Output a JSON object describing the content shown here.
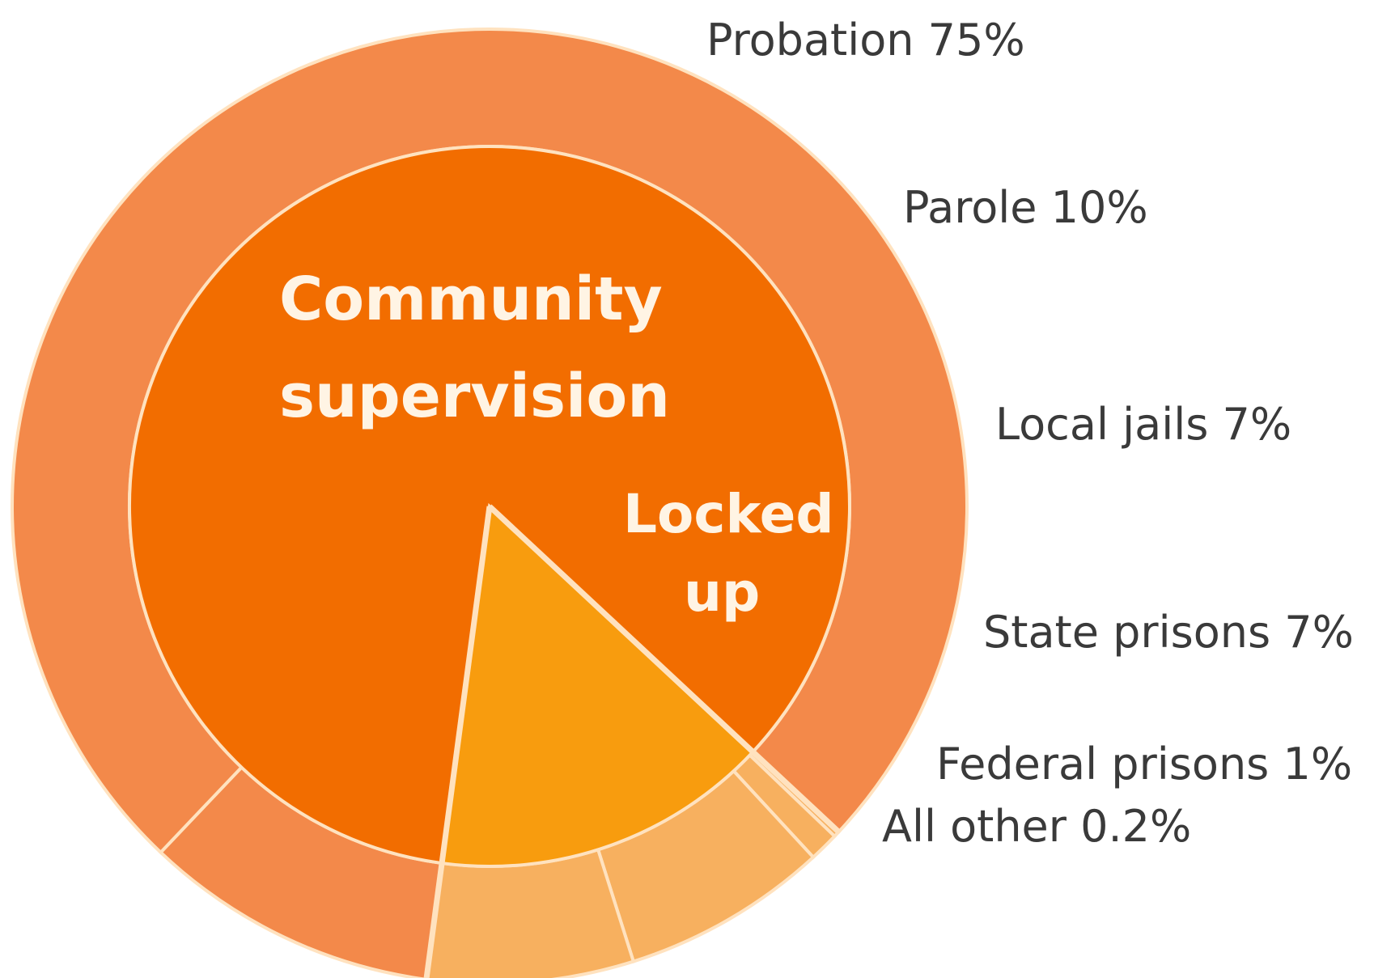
{
  "chart_data": {
    "type": "pie",
    "title": "",
    "groups": [
      {
        "name": "Community supervision",
        "name_lines": [
          "Community",
          "supervision"
        ],
        "color": "#f26d00",
        "segments": [
          {
            "name": "Probation",
            "label": "Probation 75%",
            "value": 75,
            "color": "#f3894a"
          },
          {
            "name": "Parole",
            "label": "Parole 10%",
            "value": 10,
            "color": "#f3894a"
          }
        ]
      },
      {
        "name": "Locked up",
        "name_lines": [
          "Locked",
          "up"
        ],
        "color": "#f89c0e",
        "segments": [
          {
            "name": "Local jails",
            "label": "Local jails 7%",
            "value": 7,
            "color": "#f7b05f"
          },
          {
            "name": "State prisons",
            "label": "State prisons 7%",
            "value": 7,
            "color": "#f7b05f"
          },
          {
            "name": "Federal prisons",
            "label": "Federal prisons 1%",
            "value": 1,
            "color": "#f7b05f"
          },
          {
            "name": "All other",
            "label": "All other 0.2%",
            "value": 0.2,
            "color": "#f7b05f"
          }
        ]
      }
    ],
    "colors": {
      "separator": "#ffe2bf",
      "label_text": "#3a3a3a",
      "inner_text": "#fff4e4"
    }
  }
}
